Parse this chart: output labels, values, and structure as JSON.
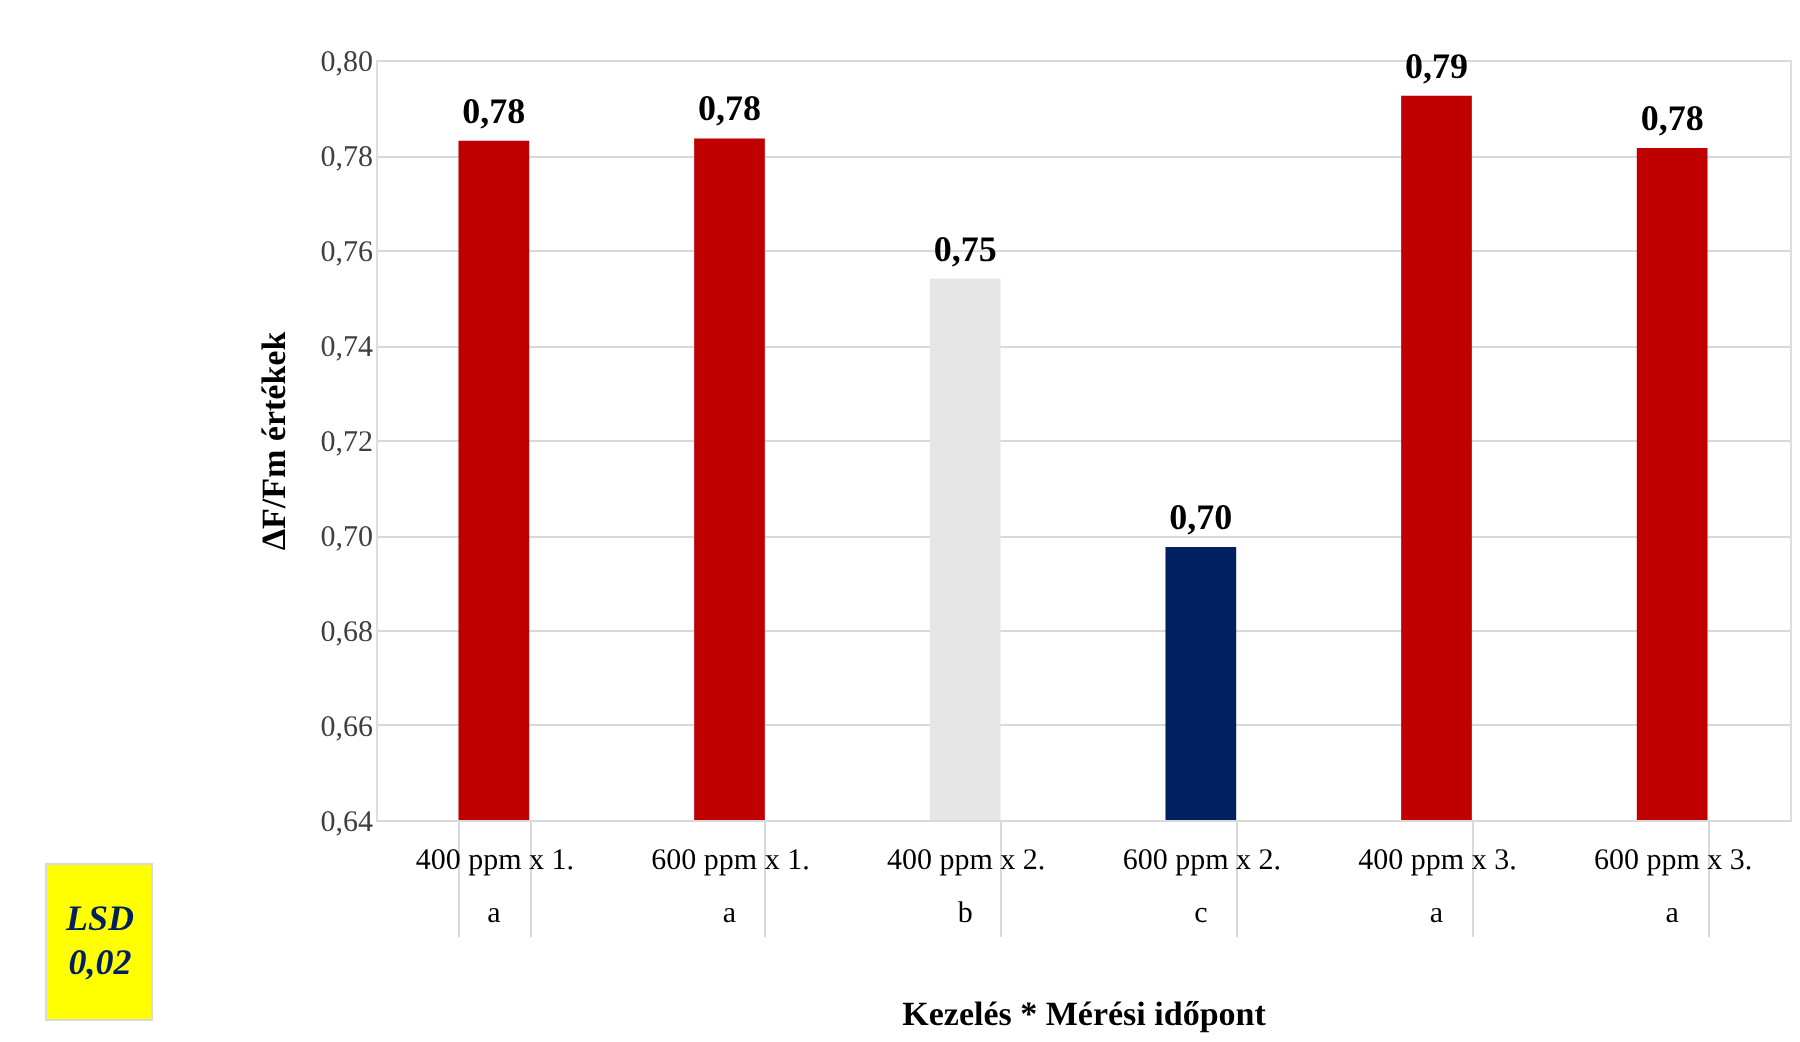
{
  "chart_data": {
    "type": "bar",
    "xlabel": "Kezelés * Mérési időpont",
    "ylabel": "ΔF/Fm értékek",
    "categories": [
      "400 ppm x 1.",
      "600 ppm x 1.",
      "400 ppm x 2.",
      "600 ppm x 2.",
      "400 ppm x 3.",
      "600 ppm x 3."
    ],
    "values": [
      0.783,
      0.7835,
      0.754,
      0.6975,
      0.7925,
      0.7815
    ],
    "colors": [
      "#c00000",
      "#c00000",
      "#e6e6e6",
      "#002060",
      "#c00000",
      "#c00000"
    ],
    "value_labels": [
      "0,78",
      "0,78",
      "0,75",
      "0,70",
      "0,79",
      "0,78"
    ],
    "ylim": [
      0.64,
      0.8
    ],
    "yticks": [
      {
        "value": 0.64,
        "label": "0,64"
      },
      {
        "value": 0.66,
        "label": "0,66"
      },
      {
        "value": 0.68,
        "label": "0,68"
      },
      {
        "value": 0.7,
        "label": "0,70"
      },
      {
        "value": 0.72,
        "label": "0,72"
      },
      {
        "value": 0.74,
        "label": "0,74"
      },
      {
        "value": 0.76,
        "label": "0,76"
      },
      {
        "value": 0.78,
        "label": "0,78"
      },
      {
        "value": 0.8,
        "label": "0,80"
      }
    ],
    "grid": "y",
    "annotations": [
      "LSD 0,02",
      "a",
      "a",
      "b",
      "c",
      "a",
      "a"
    ]
  }
}
